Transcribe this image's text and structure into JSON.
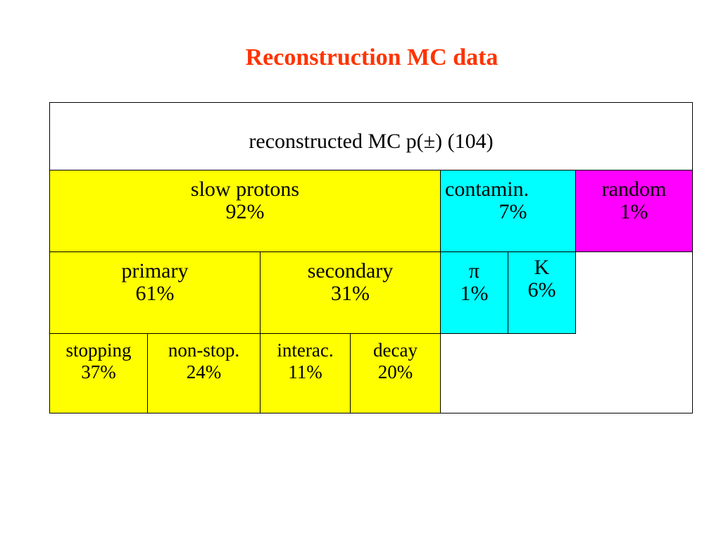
{
  "title": "Reconstruction MC data",
  "table": {
    "header": "reconstructed MC p(±)  (104)",
    "row1": [
      {
        "label": "slow protons",
        "value": "92%",
        "color": "#ffff00"
      },
      {
        "label": "contamin.",
        "value": "7%",
        "color": "#00ffff"
      },
      {
        "label": "random",
        "value": "1%",
        "color": "#ff00ff"
      }
    ],
    "row2": [
      {
        "label": "primary",
        "value": "61%",
        "color": "#ffff00"
      },
      {
        "label": "secondary",
        "value": "31%",
        "color": "#ffff00"
      },
      {
        "label": "π",
        "value": "1%",
        "color": "#00ffff"
      },
      {
        "label": "K",
        "value": "6%",
        "color": "#00ffff"
      }
    ],
    "row3": [
      {
        "label": "stopping",
        "value": "37%",
        "color": "#ffff00"
      },
      {
        "label": "non-stop.",
        "value": "24%",
        "color": "#ffff00"
      },
      {
        "label": "interac.",
        "value": "11%",
        "color": "#ffff00"
      },
      {
        "label": "decay",
        "value": "20%",
        "color": "#ffff00"
      }
    ]
  }
}
